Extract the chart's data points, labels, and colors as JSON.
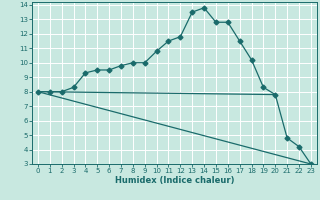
{
  "xlabel": "Humidex (Indice chaleur)",
  "xlim": [
    -0.5,
    23.5
  ],
  "ylim": [
    3,
    14.2
  ],
  "yticks": [
    3,
    4,
    5,
    6,
    7,
    8,
    9,
    10,
    11,
    12,
    13,
    14
  ],
  "xticks": [
    0,
    1,
    2,
    3,
    4,
    5,
    6,
    7,
    8,
    9,
    10,
    11,
    12,
    13,
    14,
    15,
    16,
    17,
    18,
    19,
    20,
    21,
    22,
    23
  ],
  "bg_color": "#c8e8e0",
  "line_color": "#1a6b6b",
  "grid_color": "#ffffff",
  "curve1_x": [
    0,
    1,
    2,
    3,
    4,
    5,
    6,
    7,
    8,
    9,
    10,
    11,
    12,
    13,
    14,
    15,
    16,
    17,
    18,
    19,
    20,
    21,
    22,
    23
  ],
  "curve1_y": [
    8.0,
    8.0,
    8.0,
    8.3,
    9.3,
    9.5,
    9.5,
    9.8,
    10.0,
    10.0,
    10.8,
    11.5,
    11.8,
    13.5,
    13.8,
    12.8,
    12.8,
    11.5,
    10.2,
    8.3,
    7.8,
    4.8,
    4.2,
    3.0
  ],
  "curve2_x": [
    0,
    20
  ],
  "curve2_y": [
    8.0,
    7.8
  ],
  "curve3_x": [
    0,
    23
  ],
  "curve3_y": [
    8.0,
    3.0
  ],
  "marker": "D",
  "markersize": 2.5,
  "linewidth": 0.9
}
